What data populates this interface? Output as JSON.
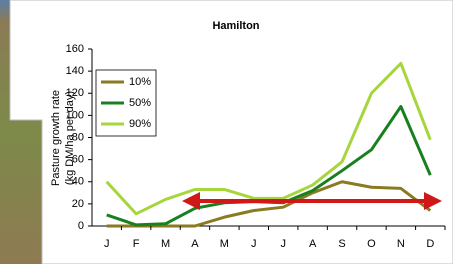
{
  "chart_data": {
    "type": "line",
    "title": "Hamilton",
    "y_label": [
      "Pasture growth rate",
      "(kg DM/ha per day)"
    ],
    "categories": [
      "J",
      "F",
      "M",
      "A",
      "M",
      "J",
      "J",
      "A",
      "S",
      "O",
      "N",
      "D"
    ],
    "series": [
      {
        "name": "10%",
        "color": "#8a7a22",
        "values": [
          0,
          0,
          0,
          0,
          8,
          14,
          17,
          30,
          40,
          35,
          34,
          14
        ]
      },
      {
        "name": "50%",
        "color": "#18801e",
        "values": [
          10,
          1,
          2,
          16,
          21,
          22,
          21,
          32,
          50,
          69,
          108,
          46
        ]
      },
      {
        "name": "90%",
        "color": "#a6d63c",
        "values": [
          40,
          11,
          24,
          33,
          33,
          25,
          25,
          37,
          58,
          120,
          147,
          78
        ]
      }
    ],
    "ylim": [
      0,
      160
    ],
    "yticks": [
      0,
      20,
      40,
      60,
      80,
      100,
      120,
      140,
      160
    ],
    "grid": false,
    "legend": "top-left"
  }
}
